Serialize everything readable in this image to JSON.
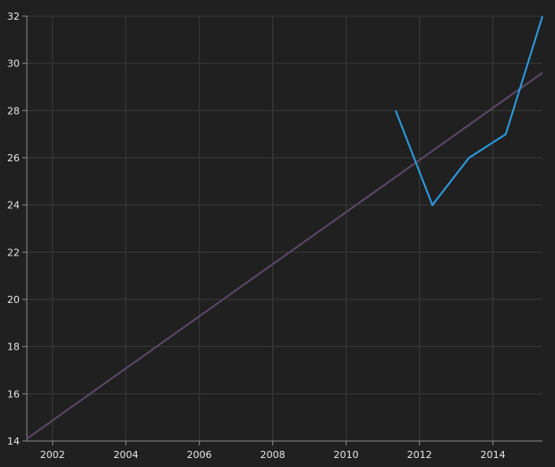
{
  "colors": {
    "background": "#202020",
    "grid": "#3a3a3a",
    "axis": "#8a8a8a",
    "tick_text": "#e6e6e6",
    "series_line": "#2b9be0",
    "trend_line": "#5a4866"
  },
  "chart_data": {
    "type": "line",
    "title": "",
    "xlabel": "",
    "ylabel": "",
    "xlim": [
      2001.3,
      2015.35
    ],
    "ylim": [
      14,
      32
    ],
    "x_ticks": [
      2002,
      2004,
      2006,
      2008,
      2010,
      2012,
      2014
    ],
    "y_ticks": [
      14,
      16,
      18,
      20,
      22,
      24,
      26,
      28,
      30,
      32
    ],
    "grid": true,
    "legend": "none",
    "series": [
      {
        "x": [
          2011.35,
          2012.35,
          2013.35,
          2014.35,
          2015.35
        ],
        "y": [
          28,
          24,
          26,
          27,
          32
        ]
      },
      {
        "x": [
          2001.3,
          2015.35
        ],
        "y": [
          14.1,
          29.6
        ]
      }
    ]
  }
}
